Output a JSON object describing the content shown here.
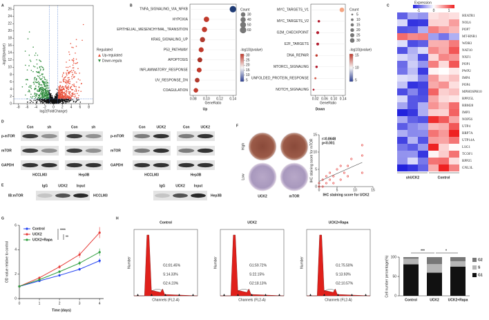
{
  "figure": {
    "A": {
      "letter": "A",
      "ylabel": "-log10(pvalue)",
      "xlabel": "log2(FoldChange)",
      "xlim": [
        -9,
        9
      ],
      "ylim": [
        0,
        27
      ],
      "xticks": [
        -8,
        -6,
        -4,
        -2,
        0,
        2,
        4,
        6,
        8
      ],
      "yticks": [
        0,
        2,
        4,
        6,
        8,
        10,
        12,
        14,
        16,
        18,
        20,
        22,
        24,
        26
      ],
      "legend_title": "Regulated",
      "legend": [
        {
          "name": "Up-regulated",
          "color": "#e8503a"
        },
        {
          "name": "Down-regula",
          "color": "#2e8b3c"
        }
      ]
    },
    "B": {
      "letter": "B",
      "count_title": "Count",
      "pval_title": "-log10(pvalue)",
      "xlabel": "GeneRatio",
      "up": {
        "caption": "Up",
        "pathways": [
          "TNFA_SIGNALING_VIA_NFKB",
          "HYPOXIA",
          "EPITHELIAL_MESENCHYMAL_TRANSITION",
          "KRAS_SIGNALING_UP",
          "P53_PATHWAY",
          "APOPTOSIS",
          "INFLAMMATORY_RESPONSE",
          "UV_RESPONSE_DN",
          "COAGULATION"
        ],
        "ratios": [
          0.14,
          0.1,
          0.097,
          0.094,
          0.092,
          0.09,
          0.089,
          0.086,
          0.084
        ],
        "counts": [
          60,
          42,
          40,
          38,
          36,
          34,
          34,
          32,
          30
        ],
        "colors": [
          "#1f3b75",
          "#c0392b",
          "#c0392b",
          "#b03a2e",
          "#c0392b",
          "#a93226",
          "#c0392b",
          "#b03a2e",
          "#c0392b"
        ],
        "xlim": [
          0.075,
          0.145
        ],
        "xticks": [
          {
            "value": 0.08,
            "label": "0.08"
          },
          {
            "value": 0.1,
            "label": "0.10"
          },
          {
            "value": 0.12,
            "label": "0.12"
          },
          {
            "value": 0.14,
            "label": "0.14"
          }
        ],
        "count_ticks": [
          30,
          40,
          50,
          60
        ],
        "pval_ticks": [
          5,
          10,
          15,
          20,
          25,
          30
        ]
      },
      "down": {
        "caption": "Down",
        "pathways": [
          "MYC_TARGETS_V1",
          "MYC_TARGETS_V2",
          "G2M_CHECKPOINT",
          "E2F_TARGETS",
          "DNA_REPAIR",
          "MTORC1_SIGNALING",
          "UNFOLDED_PROTEIN_RESPONSE",
          "NOTCH_SIGNALING"
        ],
        "ratios": [
          0.135,
          0.035,
          0.03,
          0.03,
          0.025,
          0.025,
          0.02,
          0.012
        ],
        "counts": [
          30,
          9,
          12,
          11,
          8,
          8,
          6,
          5
        ],
        "colors": [
          "#f4a582",
          "#b2182b",
          "#b2182b",
          "#b2182b",
          "#c0392b",
          "#b2182b",
          "#d6604d",
          "#b2182b"
        ],
        "xlim": [
          0,
          0.15
        ],
        "xticks": [
          {
            "value": 0.02,
            "label": "0.02"
          },
          {
            "value": 0.06,
            "label": "0.06"
          },
          {
            "value": 0.1,
            "label": "0.10"
          },
          {
            "value": 0.14,
            "label": "0.14"
          }
        ],
        "count_ticks": [
          5,
          10,
          15,
          20,
          25,
          30
        ],
        "pval_ticks": [
          5,
          10,
          15
        ]
      }
    },
    "C": {
      "letter": "C",
      "legend_title": "Expression",
      "legend_ticks": [
        -1,
        0,
        1
      ],
      "genes": [
        "HEATR1",
        "NOL6",
        "POP7",
        "MT-RNR1",
        "WDR3",
        "NAT10",
        "NXF1",
        "POP1",
        "PWP2",
        "IMP4",
        "POP4",
        "MPHOSPH10",
        "RPP25L",
        "RBM28",
        "IMP3",
        "NOP56",
        "UTP4",
        "RRP7A",
        "UTP14A",
        "LSG1",
        "TCOF1",
        "RPP25",
        "GNL3L"
      ],
      "groups": [
        "shUCK2",
        "Control"
      ]
    },
    "D": {
      "letter": "D",
      "left": {
        "rows": [
          "p-mTOR",
          "mTOR",
          "GAPDH"
        ],
        "blots": [
          {
            "cell": "HCCLM3",
            "lanes": [
              "Con",
              "sh"
            ]
          },
          {
            "cell": "Hep3B",
            "lanes": [
              "Con",
              "sh"
            ]
          }
        ]
      },
      "right": {
        "rows": [
          "p-mTOR",
          "mTOR",
          "GAPDH"
        ],
        "blots": [
          {
            "cell": "HCCLM3",
            "lanes": [
              "Con",
              "UCK2"
            ]
          },
          {
            "cell": "Hep3B",
            "lanes": [
              "Con",
              "UCK2"
            ]
          }
        ]
      }
    },
    "E": {
      "letter": "E",
      "antibody": "IB:mTOR",
      "blots": [
        {
          "cell": "HCCLM3",
          "lanes": [
            "IgG",
            "UCK2",
            "Input"
          ]
        },
        {
          "cell": "Hep3B",
          "lanes": [
            "IgG",
            "UCK2",
            "Input"
          ]
        }
      ]
    },
    "F": {
      "letter": "F",
      "rows": [
        "High",
        "Low"
      ],
      "columns": [
        "UCK2",
        "mTOR"
      ],
      "stat_r": "r=0.8648",
      "stat_p": "p<0.001",
      "xlabel": "IHC staining score for UCK2",
      "ylabel": "IHC staining score for mTOR",
      "xlim": [
        0,
        15
      ],
      "ylim": [
        0,
        15
      ],
      "xticks": [
        0,
        5,
        10,
        15
      ],
      "yticks": [
        0,
        5,
        10,
        15
      ],
      "x": [
        0,
        0,
        1,
        1,
        2,
        2,
        3,
        3,
        4,
        4,
        5,
        6,
        6,
        7,
        8,
        8,
        9,
        12,
        12,
        12
      ],
      "y": [
        0,
        1,
        0,
        2,
        1,
        3,
        2,
        4,
        1,
        3,
        5,
        2,
        6,
        4,
        3,
        6,
        8,
        9,
        12,
        4
      ],
      "trend": {
        "x": [
          0,
          12
        ],
        "y": [
          1.5,
          7
        ]
      }
    },
    "G": {
      "letter": "G",
      "ylabel": "OD value relative to control",
      "xlabel": "Time (days)",
      "xlim": [
        0,
        4.2
      ],
      "ylim": [
        0,
        6
      ],
      "xticks": [
        0,
        1,
        2,
        3,
        4
      ],
      "yticks": [
        0,
        2,
        4,
        6
      ],
      "x": [
        0,
        1,
        2,
        3,
        4
      ],
      "series": [
        {
          "name": "Control",
          "color": "#1f3ff0",
          "values": [
            1,
            1.45,
            1.9,
            2.4,
            3.1
          ],
          "errors": [
            0.05,
            0.08,
            0.1,
            0.12,
            0.2
          ]
        },
        {
          "name": "UCK2",
          "color": "#e53935",
          "values": [
            1,
            1.7,
            2.6,
            3.6,
            5.4
          ],
          "errors": [
            0.05,
            0.1,
            0.15,
            0.25,
            0.45
          ]
        },
        {
          "name": "UCK2+Rapa",
          "color": "#2e9e3e",
          "values": [
            1,
            1.55,
            2.2,
            2.9,
            3.8
          ],
          "errors": [
            0.05,
            0.08,
            0.12,
            0.18,
            0.3
          ]
        }
      ],
      "sig": [
        "****",
        "**"
      ]
    },
    "H": {
      "letter": "H",
      "hist_ylabel": "Number",
      "hist_xlabel": "Channels (FL2-A)",
      "histograms": [
        {
          "title": "Control",
          "stats": [
            "G1:81.45%",
            "S:14.33%",
            "G2:4.23%"
          ]
        },
        {
          "title": "UCK2",
          "stats": [
            "G1:59.72%",
            "S:22.15%",
            "G2:18.13%"
          ]
        },
        {
          "title": "UCK2+Rapa",
          "stats": [
            "G1:75.50%",
            "S:13.93%",
            "G2:10.57%"
          ]
        }
      ],
      "bar": {
        "ylabel": "Cell number percentage(%)",
        "ylim": [
          0,
          100
        ],
        "yticks": [
          0,
          50,
          100
        ],
        "categories": [
          "Control",
          "UCK2",
          "UCK2+Rapa"
        ],
        "series": [
          {
            "name": "G2",
            "color": "#777777",
            "values": [
              4.23,
              18.13,
              10.57
            ]
          },
          {
            "name": "S",
            "color": "#b5b5b5",
            "values": [
              14.33,
              22.15,
              13.93
            ]
          },
          {
            "name": "G1",
            "color": "#111111",
            "values": [
              81.45,
              59.72,
              75.5
            ]
          }
        ],
        "sig": [
          "***",
          "*"
        ]
      }
    }
  }
}
